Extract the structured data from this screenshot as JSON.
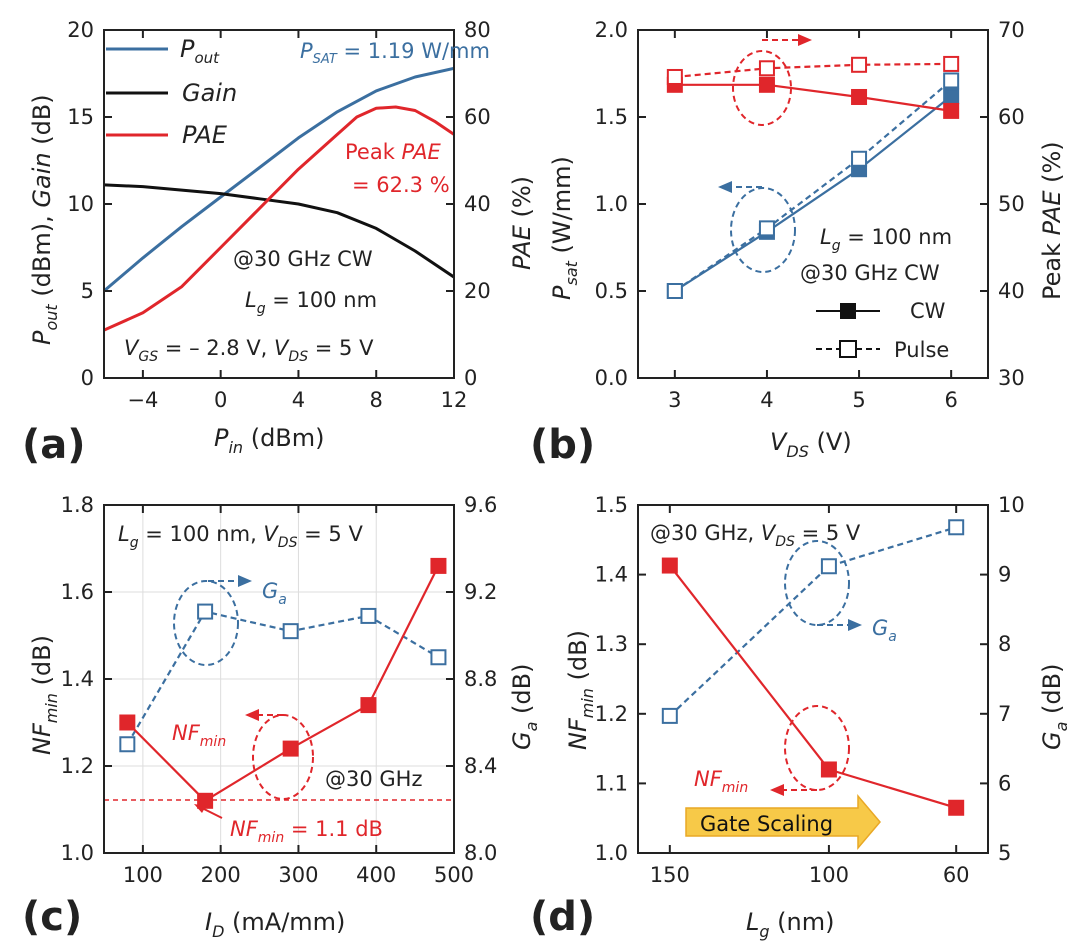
{
  "colors": {
    "blue": "#3b6fa0",
    "black": "#111111",
    "red": "#e0262b",
    "axis": "#222222",
    "grid": "#dddddd",
    "arrow": "#f7c948"
  },
  "chart_data": [
    {
      "panel": "(a)",
      "type": "line",
      "xlabel": "P_in (dBm)",
      "ylabel_left": "P_out (dBm), Gain (dB)",
      "ylabel_right": "PAE (%)",
      "xlim": [
        -6,
        12
      ],
      "ylim_left": [
        0,
        20
      ],
      "ylim_right": [
        0,
        80
      ],
      "xticks": [
        -4,
        0,
        4,
        8,
        12
      ],
      "yticks_left": [
        0,
        5,
        10,
        15,
        20
      ],
      "yticks_right": [
        0,
        20,
        40,
        60,
        80
      ],
      "series": [
        {
          "name": "P_out",
          "axis": "left",
          "color": "blue",
          "x": [
            -6,
            -4,
            -2,
            0,
            2,
            4,
            6,
            8,
            10,
            12
          ],
          "y": [
            5.0,
            6.9,
            8.7,
            10.4,
            12.1,
            13.8,
            15.3,
            16.5,
            17.3,
            17.8
          ]
        },
        {
          "name": "Gain",
          "axis": "left",
          "color": "black",
          "x": [
            -6,
            -4,
            -2,
            0,
            2,
            4,
            6,
            8,
            10,
            12
          ],
          "y": [
            11.1,
            11.0,
            10.8,
            10.6,
            10.3,
            10.0,
            9.5,
            8.6,
            7.3,
            5.8
          ]
        },
        {
          "name": "PAE",
          "axis": "right",
          "color": "red",
          "x": [
            -6,
            -4,
            -2,
            0,
            2,
            4,
            6,
            7,
            8,
            9,
            10,
            11,
            12
          ],
          "y": [
            11,
            15,
            21,
            30,
            39,
            48,
            56,
            60,
            62,
            62.3,
            61.5,
            59,
            56
          ]
        }
      ],
      "annotations": {
        "psat": "P_SAT = 1.19 W/mm",
        "peak1": "Peak PAE",
        "peak2": "= 62.3 %",
        "cond1": "@30 GHz CW",
        "cond2": "L_g = 100 nm",
        "cond3": "V_GS = – 2.8 V, V_DS = 5 V"
      }
    },
    {
      "panel": "(b)",
      "type": "line",
      "xlabel": "V_DS (V)",
      "ylabel_left": "P_sat (W/mm)",
      "ylabel_right": "Peak PAE (%)",
      "xlim": [
        2.6,
        6.4
      ],
      "ylim_left": [
        0,
        2.0
      ],
      "ylim_right": [
        30,
        70
      ],
      "xticks": [
        3,
        4,
        5,
        6
      ],
      "yticks_left": [
        0.0,
        0.5,
        1.0,
        1.5,
        2.0
      ],
      "yticks_right": [
        30,
        40,
        50,
        60,
        70
      ],
      "series": [
        {
          "name": "P_sat CW",
          "axis": "left",
          "color": "blue",
          "style": "solid",
          "marker": "filled",
          "x": [
            3,
            4,
            5,
            6
          ],
          "y": [
            0.5,
            0.84,
            1.2,
            1.62
          ]
        },
        {
          "name": "P_sat Pulse",
          "axis": "left",
          "color": "blue",
          "style": "dashed",
          "marker": "open",
          "x": [
            3,
            4,
            5,
            6
          ],
          "y": [
            0.5,
            0.86,
            1.26,
            1.71
          ]
        },
        {
          "name": "Peak PAE CW",
          "axis": "right",
          "color": "red",
          "style": "solid",
          "marker": "filled",
          "x": [
            3,
            4,
            5,
            6
          ],
          "y": [
            63.7,
            63.7,
            62.3,
            60.7
          ]
        },
        {
          "name": "Peak PAE Pulse",
          "axis": "right",
          "color": "red",
          "style": "dashed",
          "marker": "open",
          "x": [
            3,
            4,
            5,
            6
          ],
          "y": [
            64.6,
            65.6,
            66.0,
            66.1
          ]
        }
      ],
      "annotations": {
        "cond1": "L_g = 100 nm",
        "cond2": "@30 GHz CW"
      },
      "legend": [
        "CW",
        "Pulse"
      ]
    },
    {
      "panel": "(c)",
      "type": "line",
      "xlabel": "I_D (mA/mm)",
      "ylabel_left": "NF_min (dB)",
      "ylabel_right": "G_a (dB)",
      "xlim": [
        50,
        500
      ],
      "ylim_left": [
        1.0,
        1.8
      ],
      "ylim_right": [
        8.0,
        9.6
      ],
      "xticks": [
        100,
        200,
        300,
        400,
        500
      ],
      "yticks_left": [
        1.0,
        1.2,
        1.4,
        1.6,
        1.8
      ],
      "yticks_right": [
        8.0,
        8.4,
        8.8,
        9.2,
        9.6
      ],
      "grid": true,
      "series": [
        {
          "name": "G_a",
          "axis": "right",
          "color": "blue",
          "style": "dashed",
          "marker": "open",
          "x": [
            80,
            180,
            290,
            390,
            480
          ],
          "y": [
            8.5,
            9.11,
            9.02,
            9.09,
            8.9
          ]
        },
        {
          "name": "NF_min",
          "axis": "left",
          "color": "red",
          "style": "solid",
          "marker": "filled",
          "x": [
            80,
            180,
            290,
            390,
            480
          ],
          "y": [
            1.3,
            1.12,
            1.24,
            1.34,
            1.66
          ]
        }
      ],
      "reference_line": 1.12,
      "annotations": {
        "cond": "L_g = 100 nm, V_DS = 5 V",
        "freq": "@30 GHz",
        "ga": "G_a",
        "nf": "NF_min",
        "nfval": "NF_min = 1.1 dB"
      }
    },
    {
      "panel": "(d)",
      "type": "line",
      "xlabel": "L_g (nm)",
      "ylabel_left": "NF_min (dB)",
      "ylabel_right": "G_a (dB)",
      "xlim": [
        160,
        50
      ],
      "ylim_left": [
        1.0,
        1.5
      ],
      "ylim_right": [
        5,
        10
      ],
      "xticks": [
        150,
        100,
        60
      ],
      "yticks_left": [
        1.0,
        1.1,
        1.2,
        1.3,
        1.4,
        1.5
      ],
      "yticks_right": [
        5,
        6,
        7,
        8,
        9,
        10
      ],
      "series": [
        {
          "name": "G_a",
          "axis": "right",
          "color": "blue",
          "style": "dashed",
          "marker": "open",
          "x": [
            150,
            100,
            60
          ],
          "y": [
            6.97,
            9.12,
            9.68
          ]
        },
        {
          "name": "NF_min",
          "axis": "left",
          "color": "red",
          "style": "solid",
          "marker": "filled",
          "x": [
            150,
            100,
            60
          ],
          "y": [
            1.413,
            1.12,
            1.065
          ]
        }
      ],
      "annotations": {
        "cond": "@30 GHz, V_DS = 5 V",
        "ga": "G_a",
        "nf": "NF_min",
        "scaling": "Gate Scaling"
      }
    }
  ]
}
